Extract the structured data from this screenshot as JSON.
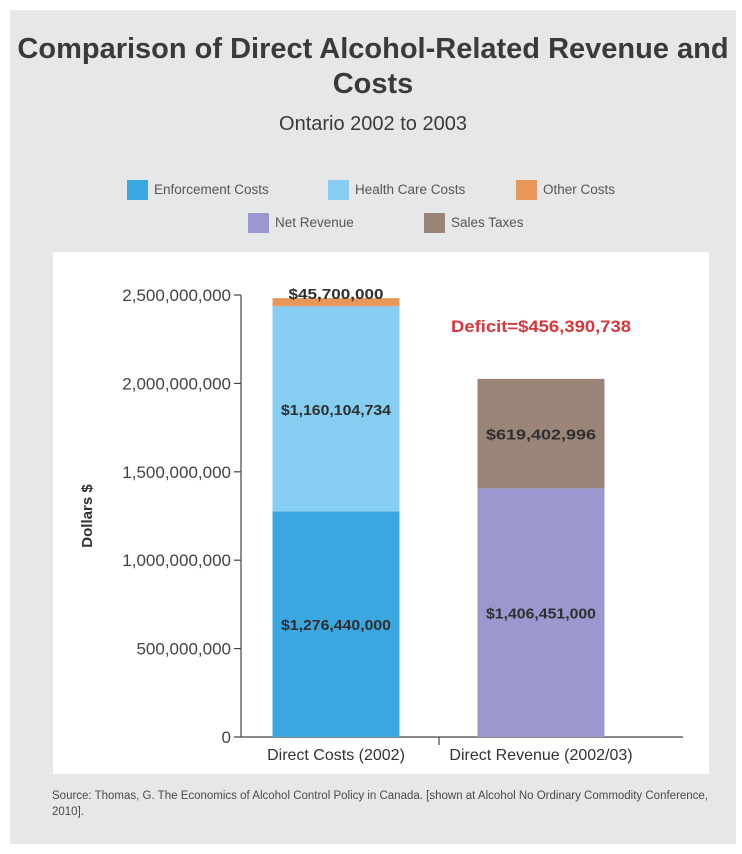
{
  "chart_data": {
    "type": "bar",
    "stacked": true,
    "title": "Comparison of Direct Alcohol-Related Revenue and Costs",
    "subtitle": "Ontario 2002 to 2003",
    "ylabel": "Dollars $",
    "xlabel": "",
    "ylim": [
      0,
      2500000000
    ],
    "yticks": [
      {
        "value": 0,
        "label": "0"
      },
      {
        "value": 500000000,
        "label": "500,000,000"
      },
      {
        "value": 1000000000,
        "label": "1,000,000,000"
      },
      {
        "value": 1500000000,
        "label": "1,500,000,000"
      },
      {
        "value": 2000000000,
        "label": "2,000,000,000"
      },
      {
        "value": 2500000000,
        "label": "2,500,000,000"
      }
    ],
    "categories": [
      "Direct Costs (2002)",
      "Direct Revenue (2002/03)"
    ],
    "series": [
      {
        "name": "Enforcement Costs",
        "color": "#3aa7e0",
        "values": [
          1276440000,
          0
        ],
        "labels": [
          "$1,276,440,000",
          ""
        ]
      },
      {
        "name": "Health Care Costs",
        "color": "#86cdf2",
        "values": [
          1160104734,
          0
        ],
        "labels": [
          "$1,160,104,734",
          ""
        ]
      },
      {
        "name": "Other Costs",
        "color": "#e8975a",
        "values": [
          45700000,
          0
        ],
        "labels": [
          "$45,700,000",
          ""
        ]
      },
      {
        "name": "Net Revenue",
        "color": "#9a98cf",
        "values": [
          0,
          1406451000
        ],
        "labels": [
          "",
          "$1,406,451,000"
        ]
      },
      {
        "name": "Sales Taxes",
        "color": "#9b8579",
        "values": [
          0,
          619402996
        ],
        "labels": [
          "",
          "$619,402,996"
        ]
      }
    ],
    "annotation": {
      "text": "Deficit=$456,390,738",
      "color": "#d8363b"
    },
    "grid": false,
    "legend_position": "top"
  },
  "source": "Source: Thomas, G. The Economics of Alcohol Control Policy in Canada. [shown at Alcohol No Ordinary Commodity Conference, 2010]."
}
